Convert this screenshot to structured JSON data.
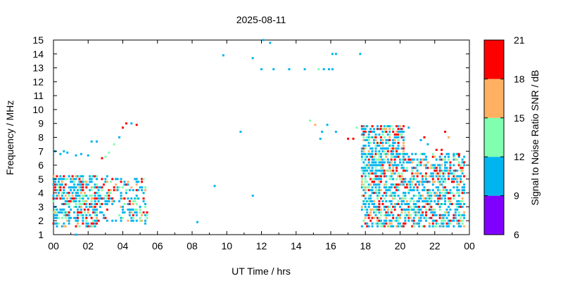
{
  "chart_data": {
    "type": "scatter",
    "title": "2025-08-11",
    "xlabel": "UT Time / hrs",
    "ylabel": "Frequency / MHz",
    "xlim": [
      0,
      24
    ],
    "ylim": [
      1,
      15
    ],
    "x_tick_labels": [
      "00",
      "02",
      "04",
      "06",
      "08",
      "10",
      "12",
      "14",
      "16",
      "18",
      "20",
      "22",
      "00"
    ],
    "y_tick_labels": [
      "1",
      "2",
      "3",
      "4",
      "5",
      "6",
      "7",
      "8",
      "9",
      "10",
      "11",
      "12",
      "13",
      "14",
      "15"
    ],
    "colorbar": {
      "label": "Signal to Noise Ratio SNR / dB",
      "range": [
        6,
        21
      ],
      "tick_labels": [
        "6",
        "9",
        "12",
        "15",
        "18",
        "21"
      ],
      "bands": [
        {
          "min": 6,
          "max": 9,
          "color": "#8000ff"
        },
        {
          "min": 9,
          "max": 12,
          "color": "#00b4f0"
        },
        {
          "min": 12,
          "max": 15,
          "color": "#80ffb0"
        },
        {
          "min": 15,
          "max": 18,
          "color": "#ffb060"
        },
        {
          "min": 18,
          "max": 21,
          "color": "#ff0000"
        }
      ]
    },
    "clusters": [
      {
        "x": [
          0,
          2.6
        ],
        "y": [
          1.6,
          5.4
        ],
        "density": 0.55
      },
      {
        "x": [
          2.6,
          5.4
        ],
        "y": [
          2.0,
          5.2
        ],
        "density": 0.3
      },
      {
        "x": [
          17.8,
          20.3
        ],
        "y": [
          1.6,
          8.9
        ],
        "density": 0.6
      },
      {
        "x": [
          20.3,
          23.8
        ],
        "y": [
          1.6,
          7.0
        ],
        "density": 0.5
      }
    ],
    "points": [
      {
        "x": 0.1,
        "y": 7.0,
        "snr": 10
      },
      {
        "x": 0.4,
        "y": 6.8,
        "snr": 10
      },
      {
        "x": 0.6,
        "y": 7.0,
        "snr": 10
      },
      {
        "x": 0.8,
        "y": 6.9,
        "snr": 10
      },
      {
        "x": 1.3,
        "y": 6.7,
        "snr": 10
      },
      {
        "x": 1.6,
        "y": 6.8,
        "snr": 10
      },
      {
        "x": 2.0,
        "y": 6.7,
        "snr": 10
      },
      {
        "x": 2.2,
        "y": 7.7,
        "snr": 10
      },
      {
        "x": 2.5,
        "y": 7.7,
        "snr": 10
      },
      {
        "x": 2.8,
        "y": 6.5,
        "snr": 19
      },
      {
        "x": 3.0,
        "y": 6.6,
        "snr": 14
      },
      {
        "x": 3.2,
        "y": 6.9,
        "snr": 14
      },
      {
        "x": 3.5,
        "y": 7.5,
        "snr": 14
      },
      {
        "x": 3.8,
        "y": 8.0,
        "snr": 10
      },
      {
        "x": 4.0,
        "y": 8.7,
        "snr": 19
      },
      {
        "x": 4.2,
        "y": 9.0,
        "snr": 19
      },
      {
        "x": 4.5,
        "y": 9.0,
        "snr": 10
      },
      {
        "x": 4.8,
        "y": 8.9,
        "snr": 19
      },
      {
        "x": 3.1,
        "y": 5.2,
        "snr": 10
      },
      {
        "x": 5.3,
        "y": 1.8,
        "snr": 10
      },
      {
        "x": 1.3,
        "y": 1.0,
        "snr": 10
      },
      {
        "x": 8.3,
        "y": 1.9,
        "snr": 10
      },
      {
        "x": 9.3,
        "y": 4.5,
        "snr": 10
      },
      {
        "x": 9.8,
        "y": 13.9,
        "snr": 10
      },
      {
        "x": 10.8,
        "y": 8.4,
        "snr": 10
      },
      {
        "x": 11.5,
        "y": 3.8,
        "snr": 10
      },
      {
        "x": 11.5,
        "y": 13.7,
        "snr": 10
      },
      {
        "x": 12.0,
        "y": 12.9,
        "snr": 10
      },
      {
        "x": 12.1,
        "y": 15.0,
        "snr": 10
      },
      {
        "x": 12.5,
        "y": 14.8,
        "snr": 10
      },
      {
        "x": 12.7,
        "y": 12.9,
        "snr": 10
      },
      {
        "x": 13.6,
        "y": 12.9,
        "snr": 10
      },
      {
        "x": 14.5,
        "y": 12.9,
        "snr": 10
      },
      {
        "x": 14.8,
        "y": 9.2,
        "snr": 14
      },
      {
        "x": 15.1,
        "y": 8.9,
        "snr": 16
      },
      {
        "x": 15.3,
        "y": 12.9,
        "snr": 14
      },
      {
        "x": 15.4,
        "y": 7.9,
        "snr": 10
      },
      {
        "x": 15.5,
        "y": 8.4,
        "snr": 10
      },
      {
        "x": 15.6,
        "y": 12.9,
        "snr": 10
      },
      {
        "x": 15.8,
        "y": 8.9,
        "snr": 10
      },
      {
        "x": 15.9,
        "y": 12.9,
        "snr": 10
      },
      {
        "x": 16.1,
        "y": 12.9,
        "snr": 10
      },
      {
        "x": 16.1,
        "y": 14.0,
        "snr": 10
      },
      {
        "x": 16.3,
        "y": 14.0,
        "snr": 10
      },
      {
        "x": 16.3,
        "y": 8.4,
        "snr": 10
      },
      {
        "x": 17.0,
        "y": 7.9,
        "snr": 19
      },
      {
        "x": 17.3,
        "y": 7.9,
        "snr": 19
      },
      {
        "x": 17.5,
        "y": 8.7,
        "snr": 14
      },
      {
        "x": 17.7,
        "y": 14.0,
        "snr": 10
      },
      {
        "x": 17.9,
        "y": 8.3,
        "snr": 10
      },
      {
        "x": 20.5,
        "y": 8.7,
        "snr": 10
      },
      {
        "x": 21.2,
        "y": 7.8,
        "snr": 10
      },
      {
        "x": 21.4,
        "y": 8.0,
        "snr": 19
      },
      {
        "x": 21.6,
        "y": 7.5,
        "snr": 10
      },
      {
        "x": 22.1,
        "y": 7.1,
        "snr": 19
      },
      {
        "x": 22.4,
        "y": 7.1,
        "snr": 19
      },
      {
        "x": 22.6,
        "y": 8.4,
        "snr": 19
      },
      {
        "x": 22.8,
        "y": 8.0,
        "snr": 16
      },
      {
        "x": 23.1,
        "y": 6.7,
        "snr": 10
      },
      {
        "x": 23.4,
        "y": 6.7,
        "snr": 19
      }
    ]
  }
}
